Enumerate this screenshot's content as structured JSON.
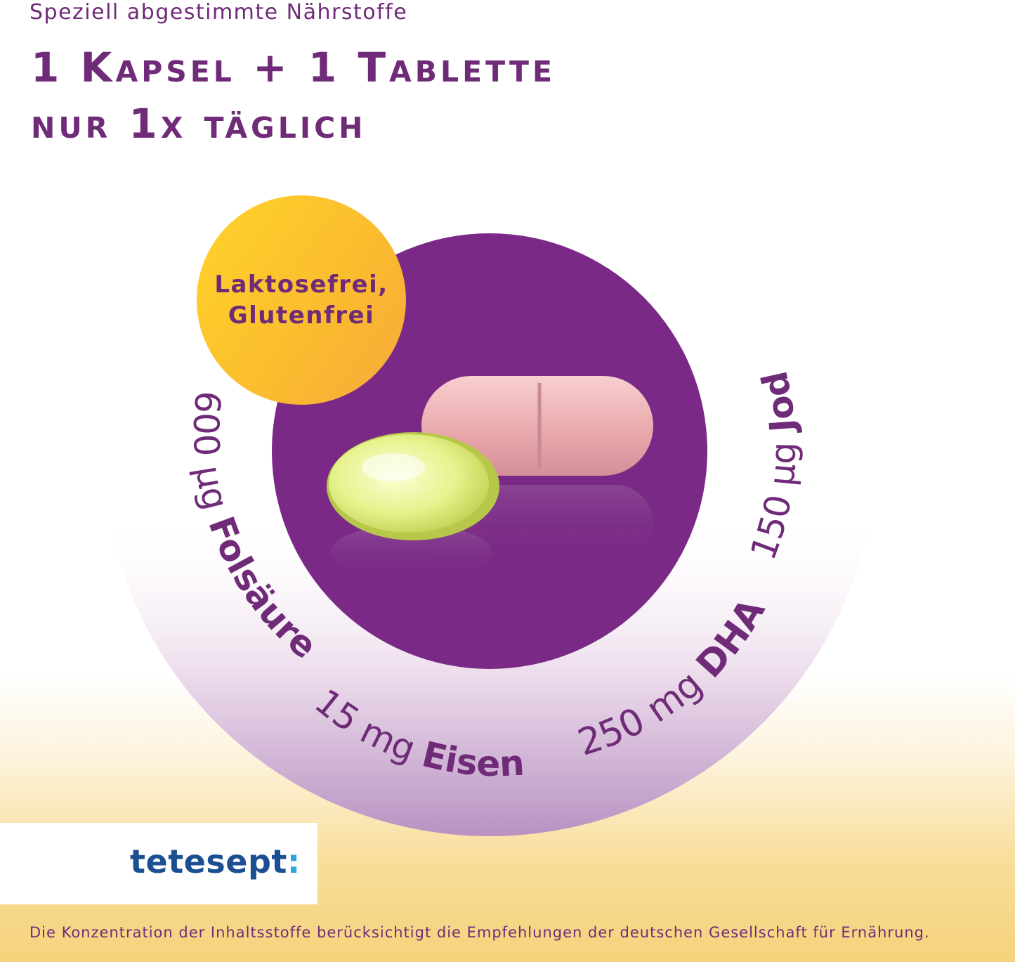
{
  "header": {
    "subtitle": "Speziell abgestimmte Nährstoffe",
    "headline_line1": "1 Kapsel + 1 Tablette",
    "headline_line2": "nur 1x täglich"
  },
  "badge": {
    "line1": "Laktosefrei,",
    "line2": "Glutenfrei"
  },
  "nutrients": {
    "folsaeure": {
      "amount": "600 µg",
      "name": "Folsäure"
    },
    "eisen": {
      "amount": "15 mg",
      "name": "Eisen"
    },
    "dha": {
      "amount": "250 mg",
      "name": "DHA"
    },
    "jod": {
      "amount": "150 µg",
      "name": "Jod"
    }
  },
  "brand": {
    "name": "tetesept",
    "colon": ":"
  },
  "footnote": "Die Konzentration der Inhaltsstoffe berücksichtigt die Empfehlungen der deutschen Gesellschaft für Ernährung.",
  "colors": {
    "purple": "#7a2a86",
    "text_purple": "#6f2b78",
    "badge_yellow": "#ffd32a",
    "badge_orange": "#f6a93a",
    "brand_blue": "#1c4f91",
    "brand_cyan": "#2aa6de"
  },
  "icons": [
    "tablet-image",
    "softgel-capsule-image"
  ]
}
